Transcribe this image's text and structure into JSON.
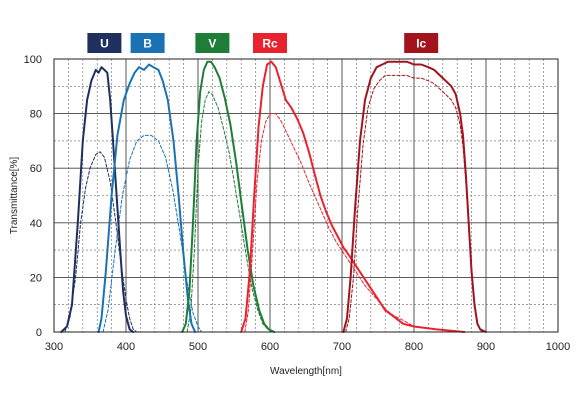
{
  "chart_data": {
    "type": "line",
    "xlabel": "Wavelength[nm]",
    "ylabel": "Transmittance[%]",
    "xlim": [
      300,
      1000
    ],
    "ylim": [
      0,
      100
    ],
    "xticks": [
      300,
      400,
      500,
      600,
      700,
      800,
      900,
      1000
    ],
    "yticks": [
      0,
      20,
      40,
      60,
      80,
      100
    ],
    "grid": true,
    "legend_placement": "top",
    "series": [
      {
        "name": "U",
        "color": "#1f2f5e",
        "style": "solid",
        "points": [
          [
            310,
            0
          ],
          [
            318,
            2
          ],
          [
            325,
            10
          ],
          [
            333,
            40
          ],
          [
            340,
            70
          ],
          [
            346,
            85
          ],
          [
            352,
            92
          ],
          [
            358,
            96
          ],
          [
            362,
            95
          ],
          [
            366,
            97
          ],
          [
            370,
            96
          ],
          [
            374,
            95
          ],
          [
            378,
            85
          ],
          [
            382,
            70
          ],
          [
            387,
            50
          ],
          [
            392,
            30
          ],
          [
            396,
            15
          ],
          [
            400,
            6
          ],
          [
            405,
            1
          ],
          [
            410,
            0
          ]
        ]
      },
      {
        "name": "U",
        "color": "#1f2f5e",
        "style": "dashed",
        "points": [
          [
            315,
            0
          ],
          [
            322,
            5
          ],
          [
            330,
            20
          ],
          [
            337,
            40
          ],
          [
            344,
            53
          ],
          [
            350,
            60
          ],
          [
            358,
            65
          ],
          [
            364,
            66
          ],
          [
            370,
            64
          ],
          [
            378,
            55
          ],
          [
            386,
            40
          ],
          [
            393,
            25
          ],
          [
            400,
            12
          ],
          [
            405,
            5
          ],
          [
            410,
            1
          ],
          [
            415,
            0
          ]
        ]
      },
      {
        "name": "B",
        "color": "#1a72b5",
        "style": "solid",
        "points": [
          [
            362,
            0
          ],
          [
            366,
            5
          ],
          [
            372,
            22
          ],
          [
            380,
            50
          ],
          [
            388,
            72
          ],
          [
            397,
            85
          ],
          [
            405,
            91
          ],
          [
            412,
            95
          ],
          [
            418,
            97
          ],
          [
            425,
            96
          ],
          [
            432,
            98
          ],
          [
            438,
            97
          ],
          [
            445,
            96
          ],
          [
            451,
            92
          ],
          [
            458,
            85
          ],
          [
            466,
            70
          ],
          [
            473,
            50
          ],
          [
            480,
            28
          ],
          [
            486,
            12
          ],
          [
            491,
            3
          ],
          [
            496,
            0
          ]
        ]
      },
      {
        "name": "B",
        "color": "#1a72b5",
        "style": "dashed",
        "points": [
          [
            368,
            0
          ],
          [
            375,
            8
          ],
          [
            385,
            30
          ],
          [
            395,
            50
          ],
          [
            405,
            63
          ],
          [
            415,
            70
          ],
          [
            425,
            72
          ],
          [
            435,
            72
          ],
          [
            445,
            70
          ],
          [
            455,
            64
          ],
          [
            465,
            52
          ],
          [
            475,
            36
          ],
          [
            485,
            18
          ],
          [
            493,
            7
          ],
          [
            500,
            2
          ],
          [
            505,
            0
          ]
        ]
      },
      {
        "name": "V",
        "color": "#1e7d37",
        "style": "solid",
        "points": [
          [
            478,
            0
          ],
          [
            483,
            3
          ],
          [
            488,
            15
          ],
          [
            493,
            40
          ],
          [
            498,
            70
          ],
          [
            503,
            88
          ],
          [
            508,
            96
          ],
          [
            513,
            99
          ],
          [
            518,
            99
          ],
          [
            523,
            97
          ],
          [
            530,
            93
          ],
          [
            537,
            86
          ],
          [
            545,
            76
          ],
          [
            553,
            62
          ],
          [
            561,
            46
          ],
          [
            569,
            30
          ],
          [
            577,
            17
          ],
          [
            585,
            8
          ],
          [
            592,
            3
          ],
          [
            598,
            1
          ],
          [
            606,
            0
          ]
        ]
      },
      {
        "name": "V",
        "color": "#1e7d37",
        "style": "dashed",
        "points": [
          [
            485,
            0
          ],
          [
            490,
            8
          ],
          [
            495,
            30
          ],
          [
            500,
            60
          ],
          [
            505,
            77
          ],
          [
            510,
            85
          ],
          [
            515,
            88
          ],
          [
            520,
            87
          ],
          [
            528,
            82
          ],
          [
            535,
            75
          ],
          [
            543,
            66
          ],
          [
            551,
            54
          ],
          [
            559,
            41
          ],
          [
            567,
            28
          ],
          [
            575,
            16
          ],
          [
            583,
            8
          ],
          [
            590,
            3
          ],
          [
            597,
            1
          ],
          [
            605,
            0
          ]
        ]
      },
      {
        "name": "Rc",
        "color": "#e8232f",
        "style": "solid",
        "points": [
          [
            560,
            0
          ],
          [
            566,
            5
          ],
          [
            572,
            22
          ],
          [
            578,
            50
          ],
          [
            584,
            75
          ],
          [
            590,
            90
          ],
          [
            596,
            98
          ],
          [
            602,
            99
          ],
          [
            608,
            97
          ],
          [
            615,
            91
          ],
          [
            622,
            85
          ],
          [
            630,
            82
          ],
          [
            638,
            78
          ],
          [
            646,
            73
          ],
          [
            654,
            66
          ],
          [
            662,
            58
          ],
          [
            670,
            50
          ],
          [
            678,
            44
          ],
          [
            686,
            39
          ],
          [
            694,
            35
          ],
          [
            702,
            31
          ],
          [
            710,
            28
          ],
          [
            720,
            24
          ],
          [
            730,
            20
          ],
          [
            740,
            16
          ],
          [
            750,
            12
          ],
          [
            760,
            8
          ],
          [
            770,
            6
          ],
          [
            785,
            3
          ],
          [
            800,
            2
          ],
          [
            830,
            1
          ],
          [
            870,
            0
          ]
        ]
      },
      {
        "name": "Rc",
        "color": "#e8232f",
        "style": "dashed",
        "points": [
          [
            565,
            0
          ],
          [
            570,
            8
          ],
          [
            576,
            30
          ],
          [
            582,
            55
          ],
          [
            588,
            70
          ],
          [
            594,
            77
          ],
          [
            600,
            80
          ],
          [
            608,
            80
          ],
          [
            616,
            77
          ],
          [
            625,
            72
          ],
          [
            634,
            67
          ],
          [
            643,
            62
          ],
          [
            652,
            56
          ],
          [
            662,
            50
          ],
          [
            672,
            44
          ],
          [
            682,
            38
          ],
          [
            692,
            33
          ],
          [
            702,
            29
          ],
          [
            712,
            25
          ],
          [
            722,
            21
          ],
          [
            732,
            17
          ],
          [
            742,
            14
          ],
          [
            752,
            11
          ],
          [
            762,
            8
          ],
          [
            772,
            6
          ],
          [
            787,
            4
          ],
          [
            800,
            2
          ],
          [
            830,
            1
          ],
          [
            870,
            0
          ]
        ]
      },
      {
        "name": "Ic",
        "color": "#a1141d",
        "style": "solid",
        "points": [
          [
            702,
            0
          ],
          [
            707,
            5
          ],
          [
            712,
            20
          ],
          [
            718,
            45
          ],
          [
            725,
            70
          ],
          [
            732,
            85
          ],
          [
            740,
            93
          ],
          [
            748,
            97
          ],
          [
            756,
            98
          ],
          [
            764,
            99
          ],
          [
            772,
            99
          ],
          [
            780,
            99
          ],
          [
            790,
            99
          ],
          [
            800,
            98
          ],
          [
            810,
            98
          ],
          [
            820,
            97
          ],
          [
            828,
            96
          ],
          [
            836,
            94
          ],
          [
            844,
            92
          ],
          [
            852,
            90
          ],
          [
            858,
            87
          ],
          [
            864,
            80
          ],
          [
            868,
            72
          ],
          [
            872,
            58
          ],
          [
            876,
            40
          ],
          [
            880,
            22
          ],
          [
            884,
            10
          ],
          [
            888,
            3
          ],
          [
            892,
            1
          ],
          [
            900,
            0
          ]
        ]
      },
      {
        "name": "Ic",
        "color": "#a1141d",
        "style": "dashed",
        "points": [
          [
            705,
            0
          ],
          [
            710,
            5
          ],
          [
            716,
            20
          ],
          [
            722,
            45
          ],
          [
            729,
            68
          ],
          [
            736,
            82
          ],
          [
            744,
            89
          ],
          [
            752,
            92
          ],
          [
            760,
            94
          ],
          [
            770,
            94
          ],
          [
            780,
            94
          ],
          [
            790,
            94
          ],
          [
            800,
            93
          ],
          [
            810,
            93
          ],
          [
            820,
            92
          ],
          [
            828,
            91
          ],
          [
            836,
            89
          ],
          [
            844,
            87
          ],
          [
            852,
            85
          ],
          [
            858,
            82
          ],
          [
            864,
            76
          ],
          [
            868,
            68
          ],
          [
            872,
            55
          ],
          [
            876,
            38
          ],
          [
            880,
            20
          ],
          [
            884,
            9
          ],
          [
            888,
            3
          ],
          [
            894,
            0
          ]
        ]
      }
    ],
    "legend": [
      {
        "label": "U",
        "color": "#1f2f5e",
        "x": 370
      },
      {
        "label": "B",
        "color": "#1a72b5",
        "x": 430
      },
      {
        "label": "V",
        "color": "#1e7d37",
        "x": 520
      },
      {
        "label": "Rc",
        "color": "#e8232f",
        "x": 600
      },
      {
        "label": "Ic",
        "color": "#a1141d",
        "x": 810
      }
    ]
  }
}
